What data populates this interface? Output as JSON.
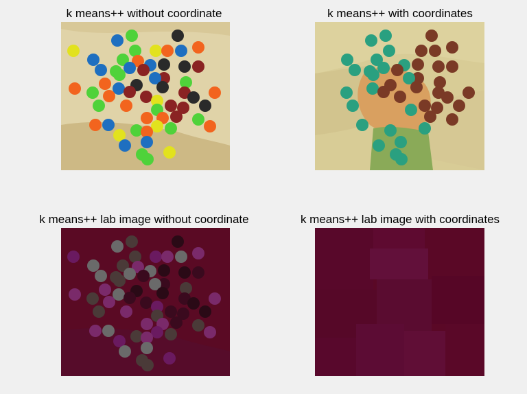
{
  "figure": {
    "panels": [
      {
        "title": "k means++ without coordinate"
      },
      {
        "title": "k means++ with coordinates"
      },
      {
        "title": "k means++ lab image without coordinate"
      },
      {
        "title": "k means++ lab image with coordinates"
      }
    ]
  },
  "colors": {
    "background": "#f0f0f0",
    "tan_light": "#e0d3a8",
    "tan_dark": "#cdb985",
    "candy_orange": "#f2641e",
    "candy_green": "#4fd23a",
    "candy_blue": "#1e6fc0",
    "candy_yellow": "#e2e21e",
    "candy_red": "#8a2323",
    "candy_black": "#2a2a2a",
    "cluster_teal": "#2aa080",
    "cluster_brown": "#7a3a26",
    "cluster_orange": "#d9a060",
    "cluster_green": "#8aaa58",
    "lab_bg": "#5a0a24",
    "lab_purple": "#7a2a6a",
    "lab_gray": "#6a6a6a"
  }
}
